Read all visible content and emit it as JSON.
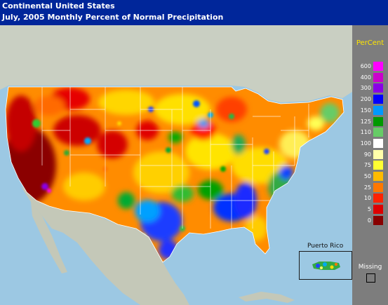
{
  "header": {
    "title": "Continental United States",
    "subtitle": "July, 2005 Monthly Percent of Normal Precipitation"
  },
  "legend": {
    "title": "PerCent",
    "items": [
      {
        "label": "600",
        "color": "#ff00ff"
      },
      {
        "label": "400",
        "color": "#cc00cc"
      },
      {
        "label": "300",
        "color": "#8a00e6"
      },
      {
        "label": "200",
        "color": "#0000ff"
      },
      {
        "label": "150",
        "color": "#0099ff"
      },
      {
        "label": "125",
        "color": "#009900"
      },
      {
        "label": "110",
        "color": "#66cc66"
      },
      {
        "label": "100",
        "color": "#ffffff"
      },
      {
        "label": "90",
        "color": "#ffffaa"
      },
      {
        "label": "75",
        "color": "#ffff33"
      },
      {
        "label": "50",
        "color": "#ffbb00"
      },
      {
        "label": "25",
        "color": "#ff7700"
      },
      {
        "label": "10",
        "color": "#ff2200"
      },
      {
        "label": "5",
        "color": "#dd0000"
      },
      {
        "label": "0",
        "color": "#880000"
      }
    ],
    "missing_label": "Missing"
  },
  "inset": {
    "label": "Puerto Rico"
  },
  "colors": {
    "ocean": "#9cc8e3",
    "canada_land": "#c9cfc2",
    "mexico_land": "#c4c8b8",
    "header_bg": "#00269a",
    "panel_bg": "#7d7d7d"
  }
}
